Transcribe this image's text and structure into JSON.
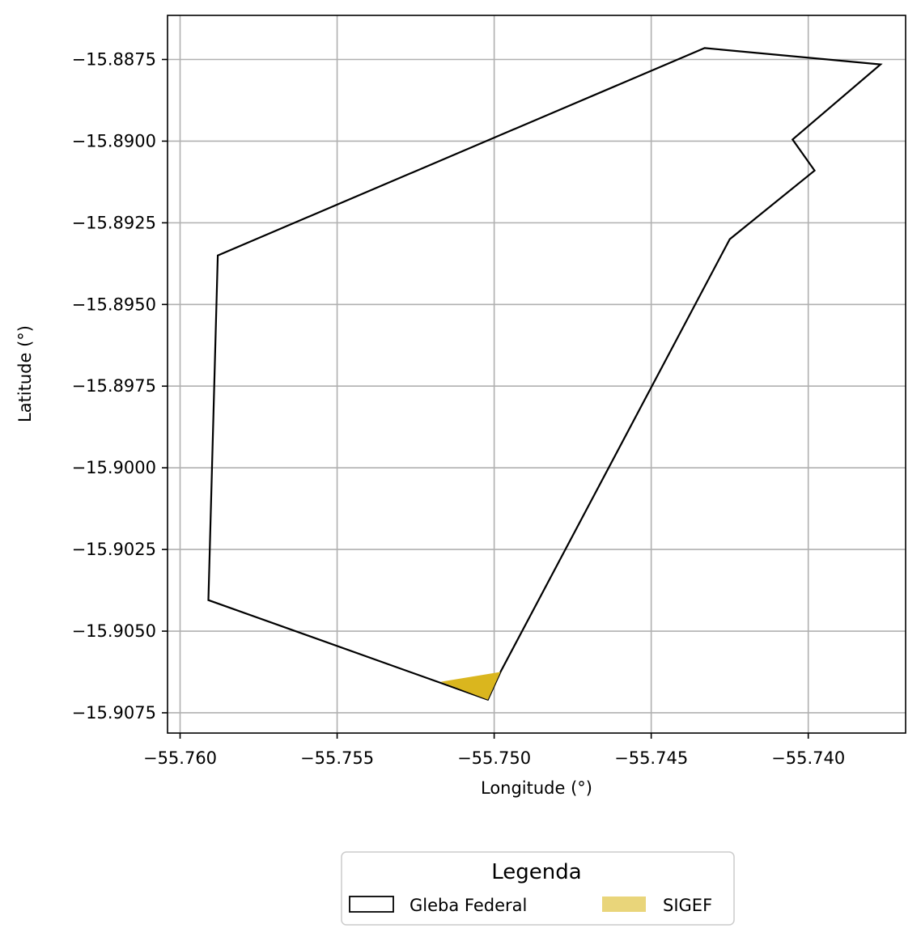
{
  "chart_data": {
    "type": "map",
    "xlabel": "Longitude (°)",
    "ylabel": "Latitude (°)",
    "xlim": [
      -55.7604,
      -55.7369
    ],
    "ylim": [
      -15.90812,
      -15.88615
    ],
    "grid": true,
    "x_ticks": [
      -55.76,
      -55.755,
      -55.75,
      -55.745,
      -55.74
    ],
    "x_tick_labels": [
      "−55.760",
      "−55.755",
      "−55.750",
      "−55.745",
      "−55.740"
    ],
    "y_ticks": [
      -15.8875,
      -15.89,
      -15.8925,
      -15.895,
      -15.8975,
      -15.9,
      -15.9025,
      -15.905,
      -15.9075
    ],
    "y_tick_labels": [
      "−15.8875",
      "−15.8900",
      "−15.8925",
      "−15.8950",
      "−15.8975",
      "−15.9000",
      "−15.9025",
      "−15.9050",
      "−15.9075"
    ],
    "layers": [
      {
        "name": "Gleba Federal",
        "kind": "outline",
        "stroke": "#000000",
        "points": [
          [
            -55.7433,
            -15.88715
          ],
          [
            -55.7377,
            -15.88765
          ],
          [
            -55.7405,
            -15.88995
          ],
          [
            -55.7398,
            -15.8909
          ],
          [
            -55.7425,
            -15.893
          ],
          [
            -55.7498,
            -15.90625
          ],
          [
            -55.7502,
            -15.9071
          ],
          [
            -55.7591,
            -15.90405
          ],
          [
            -55.7588,
            -15.8935
          ],
          [
            -55.7433,
            -15.88715
          ]
        ]
      },
      {
        "name": "SIGEF",
        "kind": "fill",
        "fill": "#DAB61E",
        "legend_fill": "#E9D57A",
        "points": [
          [
            -55.7517,
            -15.90655
          ],
          [
            -55.7498,
            -15.90625
          ],
          [
            -55.7502,
            -15.9071
          ]
        ]
      }
    ],
    "legend": {
      "title": "Legenda",
      "placement": "bottom-center",
      "entries": [
        "Gleba Federal",
        "SIGEF"
      ]
    }
  }
}
